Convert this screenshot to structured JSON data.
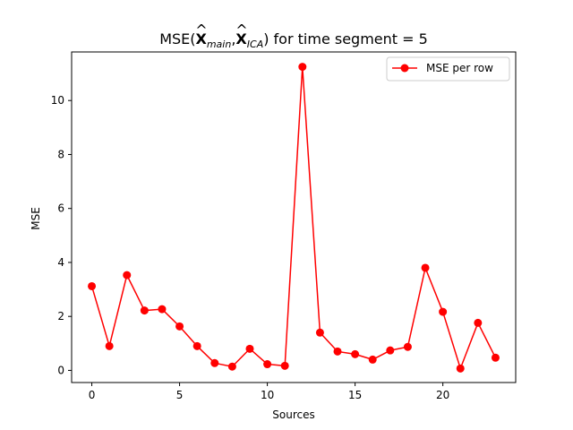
{
  "chart_data": {
    "type": "line",
    "title": {
      "prefix": "MSE(",
      "sym1": "X",
      "hat": "^",
      "sub1": "main",
      "comma": ",",
      "sym2": "X",
      "sub2": "ICA",
      "suffix": ") for time segment = 5"
    },
    "xlabel": "Sources",
    "ylabel": "MSE",
    "xlim": [
      -1.15,
      24.15
    ],
    "ylim": [
      -0.45,
      11.8
    ],
    "xticks": [
      0,
      5,
      10,
      15,
      20
    ],
    "yticks": [
      0,
      2,
      4,
      6,
      8,
      10
    ],
    "grid": false,
    "legend_position": "top-right",
    "series": [
      {
        "name": "MSE per row",
        "color": "#ff0000",
        "marker": "circle",
        "x": [
          0,
          1,
          2,
          3,
          4,
          5,
          6,
          7,
          8,
          9,
          10,
          11,
          12,
          13,
          14,
          15,
          16,
          17,
          18,
          19,
          20,
          21,
          22,
          23
        ],
        "y": [
          3.12,
          0.9,
          3.53,
          2.22,
          2.27,
          1.63,
          0.9,
          0.27,
          0.14,
          0.8,
          0.23,
          0.17,
          11.25,
          1.4,
          0.7,
          0.6,
          0.4,
          0.74,
          0.87,
          3.8,
          2.17,
          0.07,
          1.76,
          0.47
        ]
      }
    ]
  }
}
